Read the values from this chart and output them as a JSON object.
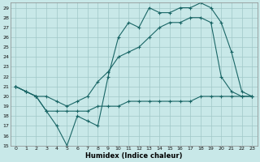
{
  "xlabel": "Humidex (Indice chaleur)",
  "bg_color": "#c8e8e8",
  "grid_color": "#a0c8c8",
  "line_color": "#1a6666",
  "xlim": [
    -0.5,
    23.5
  ],
  "ylim": [
    15,
    29.5
  ],
  "yticks": [
    15,
    16,
    17,
    18,
    19,
    20,
    21,
    22,
    23,
    24,
    25,
    26,
    27,
    28,
    29
  ],
  "xticks": [
    0,
    1,
    2,
    3,
    4,
    5,
    6,
    7,
    8,
    9,
    10,
    11,
    12,
    13,
    14,
    15,
    16,
    17,
    18,
    19,
    20,
    21,
    22,
    23
  ],
  "line1_x": [
    0,
    1,
    2,
    3,
    4,
    5,
    6,
    7,
    8,
    9,
    10,
    11,
    12,
    13,
    14,
    15,
    16,
    17,
    18,
    19,
    20,
    21,
    22,
    23
  ],
  "line1_y": [
    21.0,
    20.5,
    20.0,
    18.5,
    17.0,
    15.0,
    18.0,
    17.5,
    17.0,
    22.0,
    26.0,
    27.5,
    27.0,
    29.0,
    28.5,
    28.5,
    29.0,
    29.0,
    29.5,
    29.0,
    27.5,
    24.5,
    20.5,
    20.0
  ],
  "line2_x": [
    0,
    1,
    2,
    3,
    4,
    5,
    6,
    7,
    8,
    9,
    10,
    11,
    12,
    13,
    14,
    15,
    16,
    17,
    18,
    19,
    20,
    21,
    22,
    23
  ],
  "line2_y": [
    21.0,
    20.5,
    20.0,
    20.0,
    19.5,
    19.0,
    19.5,
    20.0,
    21.5,
    22.5,
    24.0,
    24.5,
    25.0,
    26.0,
    27.0,
    27.5,
    27.5,
    28.0,
    28.0,
    27.5,
    22.0,
    20.5,
    20.0,
    20.0
  ],
  "line3_x": [
    0,
    1,
    2,
    3,
    4,
    5,
    6,
    7,
    8,
    9,
    10,
    11,
    12,
    13,
    14,
    15,
    16,
    17,
    18,
    19,
    20,
    21,
    22,
    23
  ],
  "line3_y": [
    21.0,
    20.5,
    20.0,
    18.5,
    18.5,
    18.5,
    18.5,
    18.5,
    19.0,
    19.0,
    19.0,
    19.5,
    19.5,
    19.5,
    19.5,
    19.5,
    19.5,
    19.5,
    20.0,
    20.0,
    20.0,
    20.0,
    20.0,
    20.0
  ]
}
